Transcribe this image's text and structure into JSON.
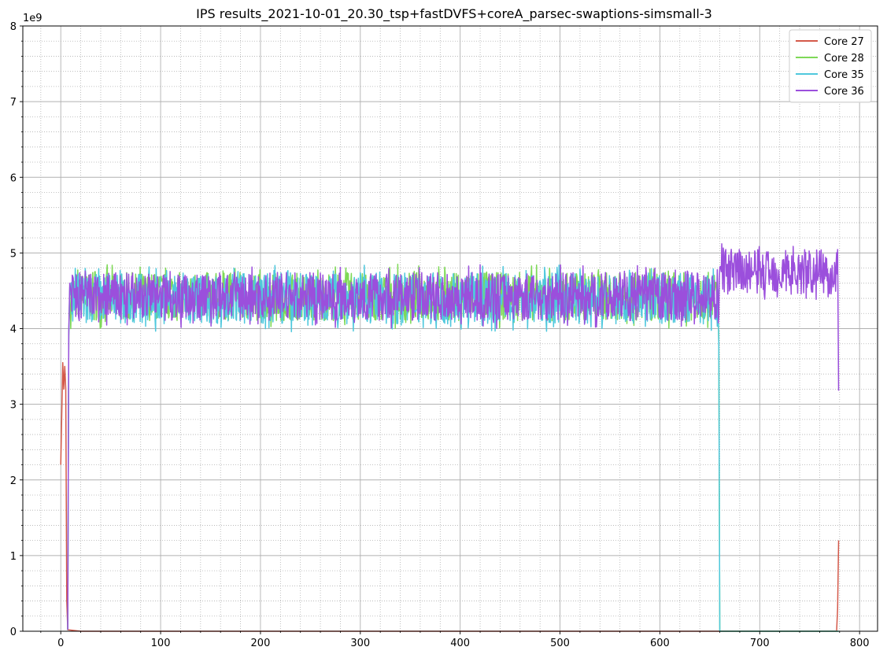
{
  "chart_data": {
    "type": "line",
    "title": "IPS results_2021-10-01_20.30_tsp+fastDVFS+coreA_parsec-swaptions-simsmall-3",
    "xlabel": "",
    "ylabel": "",
    "y_offset_label": "1e9",
    "xlim": [
      -38,
      818
    ],
    "ylim": [
      0,
      8
    ],
    "y_scale_factor": 1000000000,
    "x_ticks": [
      0,
      100,
      200,
      300,
      400,
      500,
      600,
      700,
      800
    ],
    "y_ticks": [
      0,
      1,
      2,
      3,
      4,
      5,
      6,
      7,
      8
    ],
    "grid": {
      "major": true,
      "minor": true
    },
    "legend_position": "top-right",
    "series": [
      {
        "name": "Core 27",
        "color": "#d4594a",
        "points": [
          [
            0,
            2.2
          ],
          [
            2,
            3.55
          ],
          [
            3,
            3.2
          ],
          [
            4,
            3.5
          ],
          [
            5,
            3.2
          ],
          [
            6,
            0.4
          ],
          [
            7,
            0.02
          ],
          [
            20,
            0.0
          ],
          [
            300,
            0.0
          ],
          [
            659,
            0.0
          ],
          [
            777,
            0.0
          ],
          [
            778,
            0.3
          ],
          [
            779,
            1.2
          ]
        ]
      },
      {
        "name": "Core 28",
        "color": "#7ed957",
        "points": [
          [
            7,
            0.02
          ],
          [
            8,
            3.9
          ],
          [
            9,
            4.5
          ],
          [
            10,
            4.2
          ],
          [
            658,
            4.3
          ],
          [
            659,
            3.8
          ],
          [
            660,
            0.0
          ],
          [
            779,
            0.0
          ]
        ],
        "band": {
          "x_start": 10,
          "x_end": 658,
          "low": 4.0,
          "high": 4.85
        }
      },
      {
        "name": "Core 35",
        "color": "#4fc8dd",
        "points": [
          [
            7,
            0.02
          ],
          [
            8,
            3.9
          ],
          [
            9,
            4.55
          ],
          [
            10,
            4.3
          ],
          [
            658,
            4.5
          ],
          [
            659,
            3.8
          ],
          [
            660,
            0.0
          ],
          [
            779,
            0.0
          ]
        ],
        "band": {
          "x_start": 10,
          "x_end": 658,
          "low": 3.95,
          "high": 4.85
        }
      },
      {
        "name": "Core 36",
        "color": "#9b4fdc",
        "points": [
          [
            7,
            0.02
          ],
          [
            8,
            3.95
          ],
          [
            9,
            4.6
          ],
          [
            10,
            4.3
          ],
          [
            659,
            4.4
          ],
          [
            660,
            4.7
          ],
          [
            778,
            5.1
          ],
          [
            779,
            3.18
          ]
        ],
        "band": {
          "x_start": 10,
          "x_end": 778,
          "low": 4.0,
          "high": 4.85,
          "segments": [
            {
              "x_start": 660,
              "x_end": 778,
              "low": 4.35,
              "high": 5.15
            }
          ]
        }
      }
    ]
  }
}
